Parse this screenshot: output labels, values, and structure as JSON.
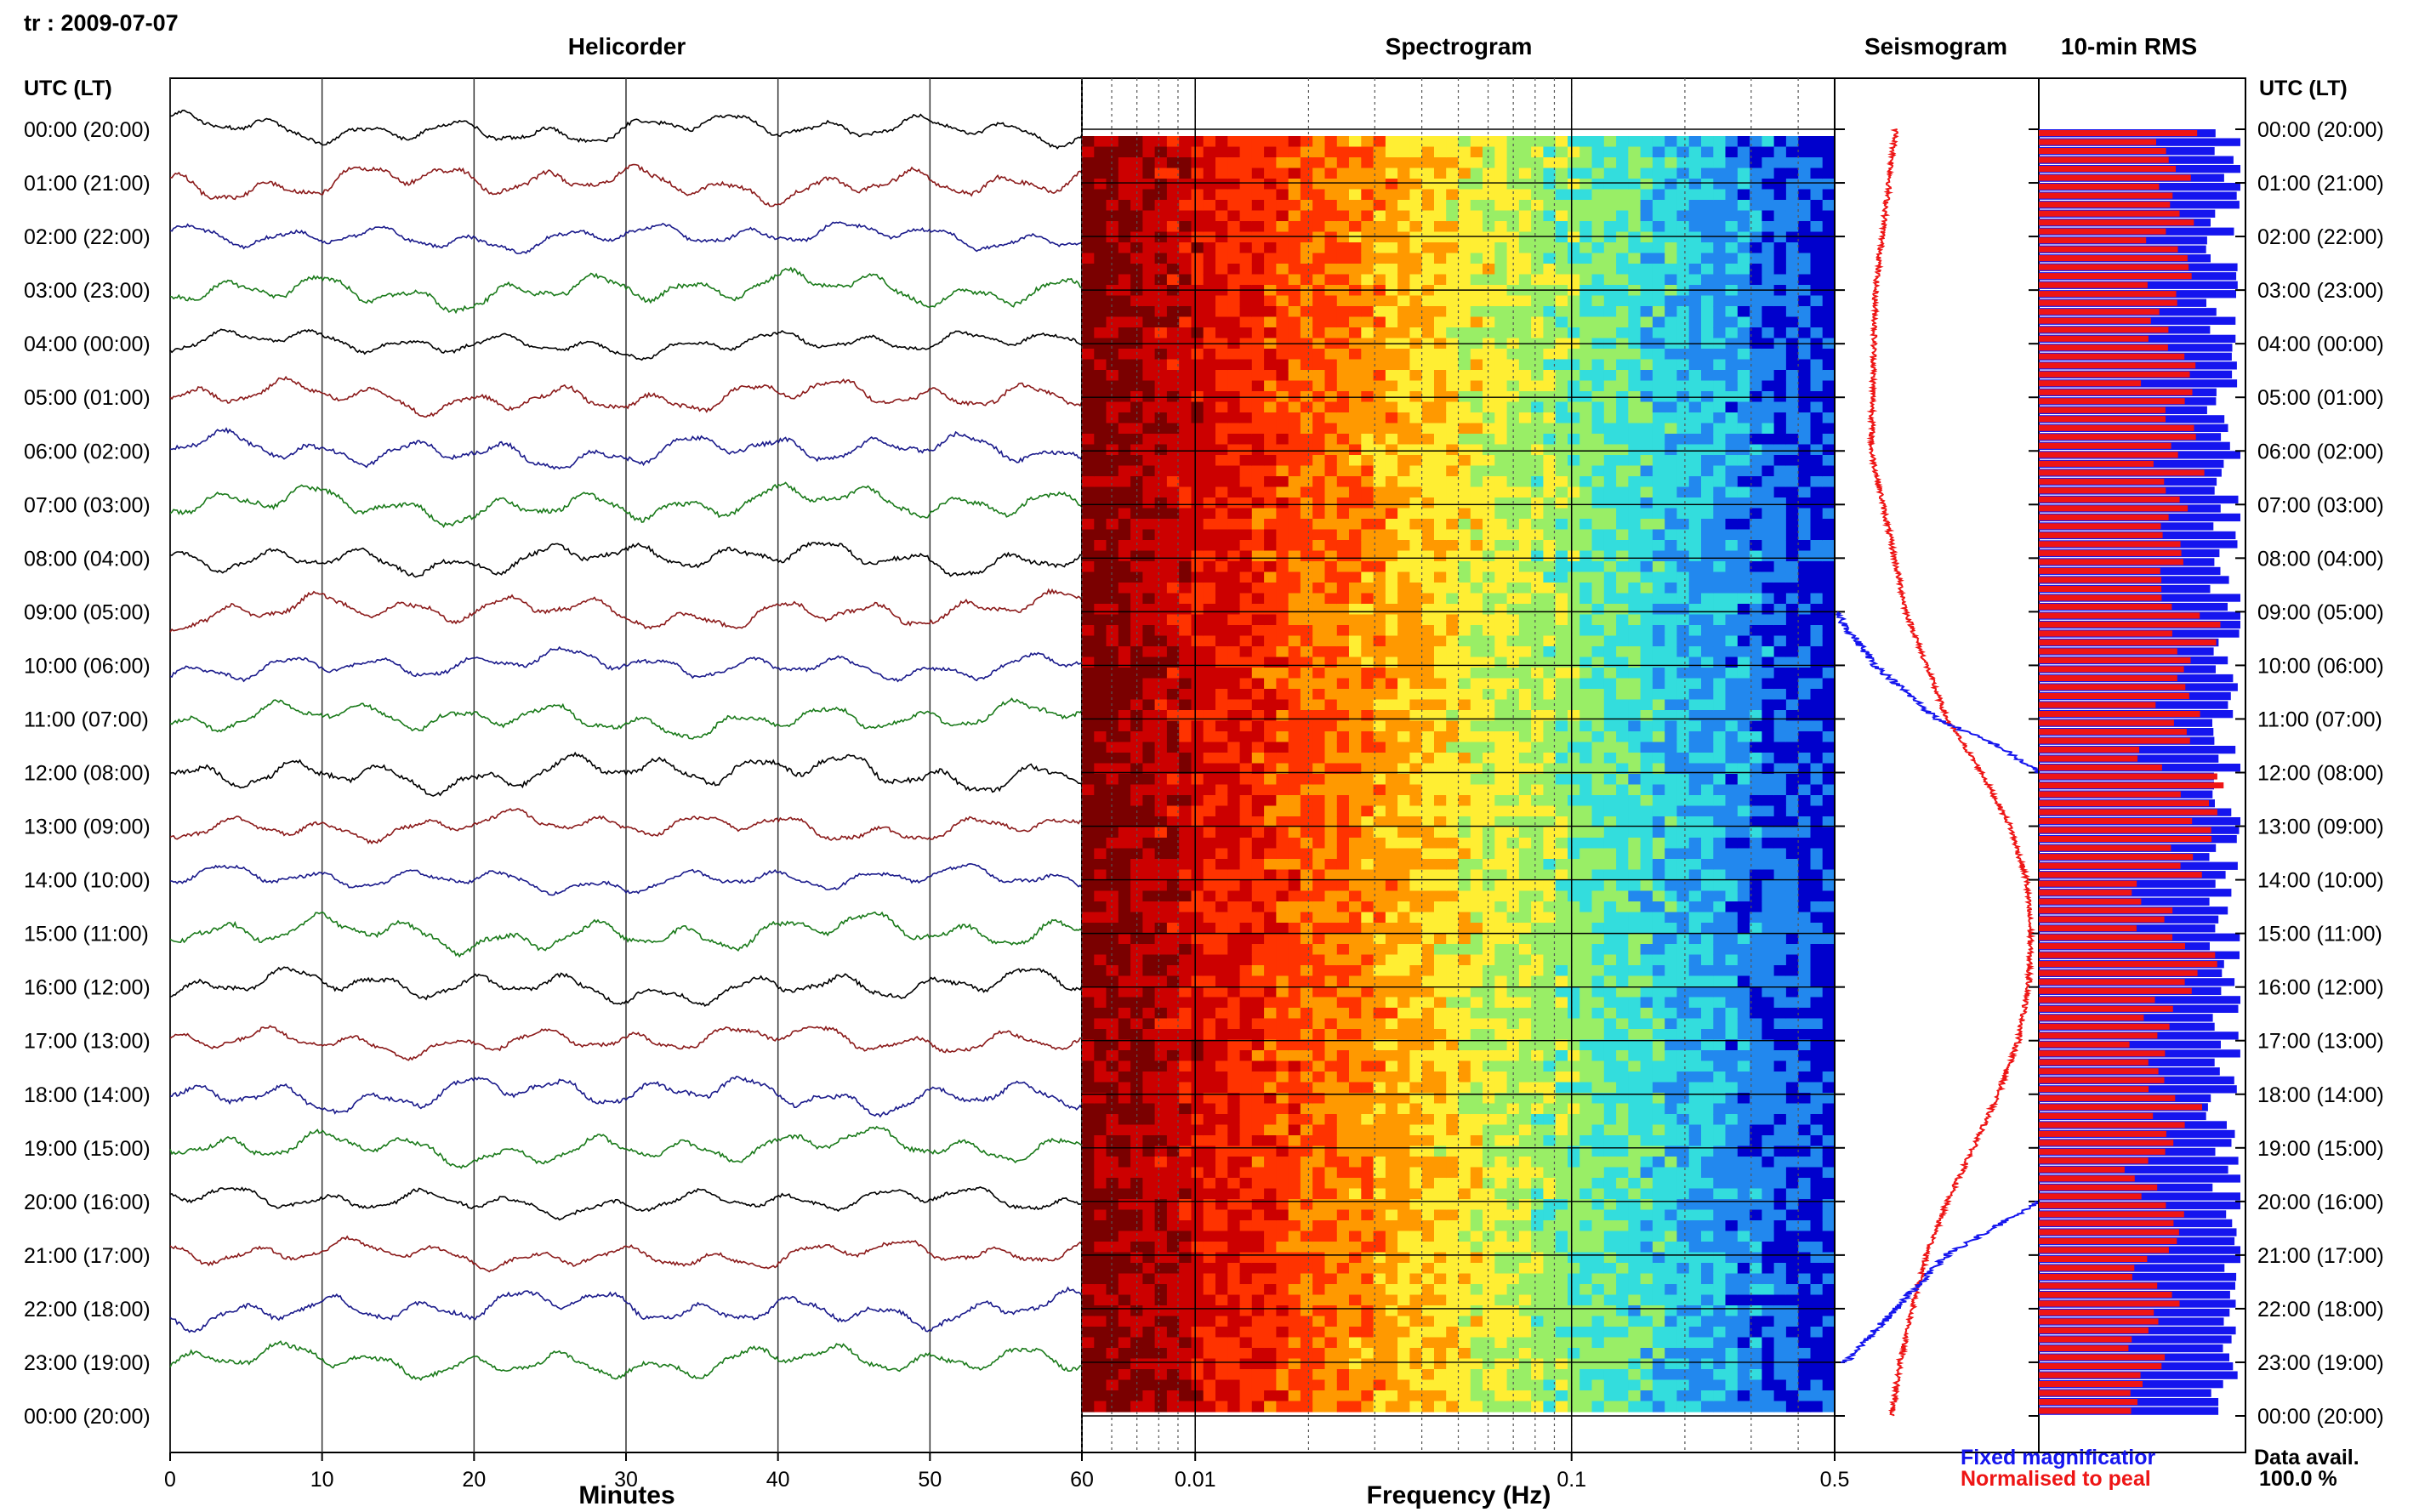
{
  "header": {
    "station_date": "tr : 2009-07-07",
    "utc_label_left": "UTC (LT)",
    "utc_label_right": "UTC (LT)"
  },
  "panels": {
    "helicorder_title": "Helicorder",
    "spectrogram_title": "Spectrogram",
    "seismogram_title": "Seismogram",
    "rms_title": "10-min RMS"
  },
  "axes": {
    "minutes_label": "Minutes",
    "frequency_label": "Frequency (Hz)"
  },
  "legend": {
    "fixed": "Fixed magnificatior",
    "normalised": "Normalised to peal",
    "fixed_color": "#1515ee",
    "normalised_color": "#ee1515"
  },
  "data_avail": {
    "label": "Data avail.",
    "value": "100.0 %"
  },
  "colors": {
    "trace_cycle": [
      "#000000",
      "#8b1a1a",
      "#1a1a8b",
      "#1a7a1a"
    ]
  },
  "chart_data": [
    {
      "type": "line",
      "name": "helicorder",
      "title": "Helicorder",
      "xlabel": "Minutes",
      "xlim": [
        0,
        60
      ],
      "x_ticks": [
        "0",
        "10",
        "20",
        "30",
        "40",
        "50",
        "60"
      ],
      "row_labels": [
        "00:00 (20:00)",
        "01:00 (21:00)",
        "02:00 (22:00)",
        "03:00 (23:00)",
        "04:00 (00:00)",
        "05:00 (01:00)",
        "06:00 (02:00)",
        "07:00 (03:00)",
        "08:00 (04:00)",
        "09:00 (05:00)",
        "10:00 (06:00)",
        "11:00 (07:00)",
        "12:00 (08:00)",
        "13:00 (09:00)",
        "14:00 (10:00)",
        "15:00 (11:00)",
        "16:00 (12:00)",
        "17:00 (13:00)",
        "18:00 (14:00)",
        "19:00 (15:00)",
        "20:00 (16:00)",
        "21:00 (17:00)",
        "22:00 (18:00)",
        "23:00 (19:00)",
        "00:00 (20:00)"
      ],
      "trace_rows": 24
    },
    {
      "type": "heatmap",
      "name": "spectrogram",
      "title": "Spectrogram",
      "xlabel": "Frequency (Hz)",
      "x_scale": "log",
      "xlim": [
        0.005,
        0.5
      ],
      "x_ticks": [
        {
          "value": 0.01,
          "label": "0.01"
        },
        {
          "value": 0.1,
          "label": "0.1"
        },
        {
          "value": 0.5,
          "label": "0.5"
        }
      ],
      "colormap": [
        "#7a0000",
        "#cc0000",
        "#ff3300",
        "#ff9900",
        "#ffee33",
        "#99ee66",
        "#33dddd",
        "#2288ee",
        "#0000cc"
      ],
      "power_bands": [
        {
          "freq_from": 0.005,
          "freq_to": 0.01,
          "level": "high"
        },
        {
          "freq_from": 0.01,
          "freq_to": 0.03,
          "level": "medium"
        },
        {
          "freq_from": 0.03,
          "freq_to": 0.25,
          "level": "low"
        },
        {
          "freq_from": 0.25,
          "freq_to": 0.5,
          "level": "lowest"
        }
      ]
    },
    {
      "type": "line",
      "name": "seismogram",
      "title": "Seismogram",
      "series": [
        {
          "name": "Fixed magnificatior",
          "color": "#1515ee",
          "points": [
            [
              9.0,
              0.0
            ],
            [
              10.0,
              0.2
            ],
            [
              11.0,
              0.5
            ],
            [
              11.5,
              0.8
            ],
            [
              12.0,
              1.0
            ]
          ],
          "points_late": [
            [
              20.0,
              1.0
            ],
            [
              21.0,
              0.55
            ],
            [
              22.0,
              0.3
            ],
            [
              23.0,
              0.05
            ]
          ]
        },
        {
          "name": "Normalised to peal",
          "color": "#ee1515",
          "points": [
            [
              0,
              0.3
            ],
            [
              3,
              0.2
            ],
            [
              6,
              0.18
            ],
            [
              9,
              0.35
            ],
            [
              11,
              0.55
            ],
            [
              12,
              0.72
            ],
            [
              13,
              0.86
            ],
            [
              14,
              0.94
            ],
            [
              15,
              0.96
            ],
            [
              16,
              0.95
            ],
            [
              17,
              0.9
            ],
            [
              18,
              0.8
            ],
            [
              19,
              0.68
            ],
            [
              20,
              0.55
            ],
            [
              21,
              0.45
            ],
            [
              22,
              0.38
            ],
            [
              23,
              0.32
            ],
            [
              24,
              0.28
            ]
          ]
        }
      ]
    },
    {
      "type": "bar",
      "name": "10-min RMS",
      "title": "10-min RMS",
      "orientation": "horizontal",
      "series": [
        {
          "name": "Fixed magnificatior",
          "color": "#1515ee",
          "values": [
            0.96,
            0.94,
            0.92,
            0.9,
            0.9,
            0.91,
            0.92,
            0.93,
            0.93,
            0.94,
            0.93,
            0.92,
            0.94,
            0.92,
            0.9,
            0.92,
            0.93,
            0.92,
            0.92,
            0.93,
            0.94,
            0.93,
            0.92,
            0.9
          ]
        },
        {
          "name": "Normalised to peal",
          "color": "#ee1515",
          "values": [
            0.7,
            0.68,
            0.66,
            0.66,
            0.64,
            0.66,
            0.7,
            0.7,
            0.74,
            0.78,
            0.66,
            0.62,
            0.8,
            0.72,
            0.6,
            0.76,
            0.64,
            0.56,
            0.7,
            0.56,
            0.7,
            0.6,
            0.58,
            0.52
          ]
        }
      ]
    }
  ]
}
